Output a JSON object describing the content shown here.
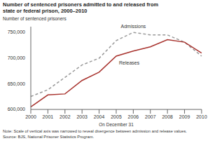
{
  "chart_data": {
    "type": "line",
    "title": "Number of sentenced prisoners admitted to and released from state or federal prison, 2000–2010",
    "ylabel": "Number of sentenced prisoners",
    "xlabel": "On December 31",
    "categories": [
      "2000",
      "2001",
      "2002",
      "2003",
      "2004",
      "2005",
      "2006",
      "2007",
      "2008",
      "2009",
      "2010"
    ],
    "series": [
      {
        "name": "Admissions",
        "color": "#999999",
        "line_style": "dashed",
        "values": [
          625000,
          638000,
          662000,
          686000,
          699000,
          733000,
          749000,
          744000,
          744000,
          730000,
          703000
        ]
      },
      {
        "name": "Releases",
        "color": "#a8322d",
        "line_style": "solid",
        "values": [
          605000,
          628000,
          630000,
          656000,
          672000,
          703000,
          713000,
          721000,
          735000,
          730000,
          709000
        ]
      }
    ],
    "ylim": [
      600000,
      760000
    ],
    "yticks": [
      {
        "value": 600000,
        "label": "600,000"
      },
      {
        "value": 650000,
        "label": "650,000"
      },
      {
        "value": 700000,
        "label": "700,000"
      },
      {
        "value": 750000,
        "label": "750,000"
      }
    ],
    "grid": false,
    "notes": [
      "Note: Scale of vertical axis was narrowed to reveal divergence between admission and release values.",
      "Source: BJS, National Prisoner Statistics Program."
    ]
  }
}
